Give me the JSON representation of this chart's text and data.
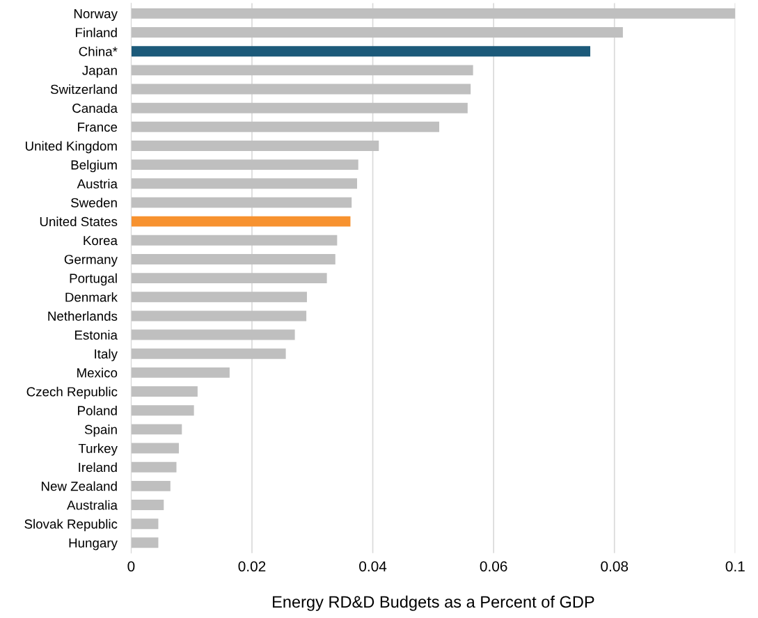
{
  "chart_data": {
    "type": "bar",
    "orientation": "horizontal",
    "xlabel": "Energy RD&D Budgets as a Percent of GDP",
    "categories": [
      "Norway",
      "Finland",
      "China*",
      "Japan",
      "Switzerland",
      "Canada",
      "France",
      "United Kingdom",
      "Belgium",
      "Austria",
      "Sweden",
      "United States",
      "Korea",
      "Germany",
      "Portugal",
      "Denmark",
      "Netherlands",
      "Estonia",
      "Italy",
      "Mexico",
      "Czech Republic",
      "Poland",
      "Spain",
      "Turkey",
      "Ireland",
      "New Zealand",
      "Australia",
      "Slovak Republic",
      "Hungary"
    ],
    "values": [
      0.1,
      0.0814,
      0.076,
      0.0566,
      0.0562,
      0.0557,
      0.051,
      0.041,
      0.0376,
      0.0374,
      0.0365,
      0.0363,
      0.0341,
      0.0338,
      0.0324,
      0.0291,
      0.029,
      0.0271,
      0.0256,
      0.0163,
      0.011,
      0.0104,
      0.0084,
      0.0079,
      0.0075,
      0.0065,
      0.0054,
      0.0045,
      0.0045
    ],
    "colors": [
      "#bfbfbf",
      "#bfbfbf",
      "#1c5a7a",
      "#bfbfbf",
      "#bfbfbf",
      "#bfbfbf",
      "#bfbfbf",
      "#bfbfbf",
      "#bfbfbf",
      "#bfbfbf",
      "#bfbfbf",
      "#f7922f",
      "#bfbfbf",
      "#bfbfbf",
      "#bfbfbf",
      "#bfbfbf",
      "#bfbfbf",
      "#bfbfbf",
      "#bfbfbf",
      "#bfbfbf",
      "#bfbfbf",
      "#bfbfbf",
      "#bfbfbf",
      "#bfbfbf",
      "#bfbfbf",
      "#bfbfbf",
      "#bfbfbf",
      "#bfbfbf",
      "#bfbfbf"
    ],
    "xlim": [
      0,
      0.1
    ],
    "xticks": [
      0,
      0.02,
      0.04,
      0.06,
      0.08,
      0.1
    ],
    "grid": "x"
  }
}
